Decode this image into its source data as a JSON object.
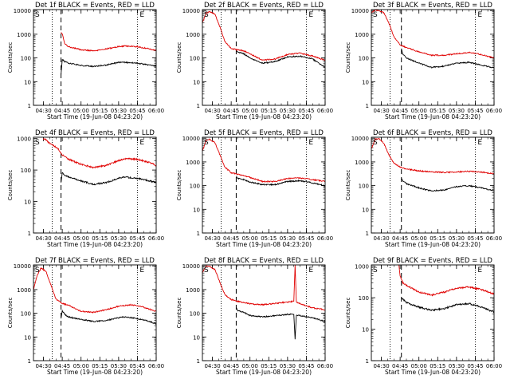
{
  "chart_data": [
    {
      "type": "line",
      "title": "Det 1f BLACK = Events, RED = LLD",
      "xlabel": "Start Time (19-Jun-08 04:23:20)",
      "ylabel": "Counts/sec",
      "y_scale": "log",
      "ylim": [
        1,
        11000
      ],
      "xlim": [
        "04:22",
        "06:00"
      ],
      "x_ticks": [
        "04:30",
        "04:45",
        "05:00",
        "05:15",
        "05:30",
        "05:45",
        "06:00"
      ],
      "y_ticks": [
        "1",
        "10",
        "100",
        "1000",
        "10000"
      ],
      "markers": {
        "dotted": [
          "04:37",
          "05:45"
        ],
        "dashed": [
          "04:44"
        ]
      },
      "corner_labels": {
        "left": "S",
        "right": "E"
      },
      "series": [
        {
          "name": "BLACK = Events",
          "color": "#000000",
          "x": [
            "04:44",
            "04:45",
            "04:47",
            "04:50",
            "05:00",
            "05:10",
            "05:20",
            "05:30",
            "05:35",
            "05:45",
            "05:55",
            "06:00"
          ],
          "y": [
            20,
            90,
            70,
            60,
            48,
            44,
            50,
            65,
            65,
            60,
            50,
            45
          ]
        },
        {
          "name": "RED = LLD",
          "color": "#e00000",
          "x": [
            "04:44",
            "04:45",
            "04:47",
            "04:50",
            "05:00",
            "05:10",
            "05:20",
            "05:30",
            "05:35",
            "05:45",
            "05:55",
            "06:00"
          ],
          "y": [
            1200,
            1000,
            400,
            300,
            220,
            200,
            240,
            300,
            320,
            300,
            240,
            200
          ]
        }
      ]
    },
    {
      "type": "line",
      "title": "Det 2f BLACK = Events, RED = LLD",
      "xlabel": "Start Time (19-Jun-08 04:23:20)",
      "ylabel": "Counts/sec",
      "y_scale": "log",
      "ylim": [
        1,
        11000
      ],
      "xlim": [
        "04:22",
        "06:00"
      ],
      "x_ticks": [
        "04:30",
        "04:45",
        "05:00",
        "05:15",
        "05:30",
        "05:45",
        "06:00"
      ],
      "y_ticks": [
        "1",
        "10",
        "100",
        "1000",
        "10000"
      ],
      "markers": {
        "dotted": [
          "04:37",
          "05:45"
        ],
        "dashed": [
          "04:49"
        ]
      },
      "corner_labels": {
        "left": "S",
        "right": "E"
      },
      "series": [
        {
          "name": "BLACK = Events",
          "color": "#000000",
          "x": [
            "04:49",
            "04:50",
            "04:55",
            "05:00",
            "05:10",
            "05:20",
            "05:30",
            "05:40",
            "05:50",
            "06:00"
          ],
          "y": [
            200,
            180,
            150,
            100,
            60,
            70,
            110,
            120,
            90,
            40
          ]
        },
        {
          "name": "RED = LLD",
          "color": "#e00000",
          "x": [
            "04:22",
            "04:25",
            "04:28",
            "04:32",
            "04:36",
            "04:40",
            "04:45",
            "04:50",
            "04:55",
            "05:00",
            "05:10",
            "05:20",
            "05:30",
            "05:40",
            "05:50",
            "06:00"
          ],
          "y": [
            3000,
            8000,
            9000,
            7000,
            2000,
            500,
            250,
            220,
            200,
            150,
            80,
            90,
            140,
            160,
            120,
            80
          ]
        }
      ]
    },
    {
      "type": "line",
      "title": "Det 3f BLACK = Events, RED = LLD",
      "xlabel": "Start Time (19-Jun-08 04:23:20)",
      "ylabel": "Counts/sec",
      "y_scale": "log",
      "ylim": [
        1,
        11000
      ],
      "xlim": [
        "04:22",
        "06:00"
      ],
      "x_ticks": [
        "04:30",
        "04:45",
        "05:00",
        "05:15",
        "05:30",
        "05:45",
        "06:00"
      ],
      "y_ticks": [
        "1",
        "10",
        "100",
        "1000",
        "10000"
      ],
      "markers": {
        "dotted": [
          "04:37",
          "05:45"
        ],
        "dashed": [
          "04:46"
        ]
      },
      "corner_labels": {
        "left": "S",
        "right": "E"
      },
      "series": [
        {
          "name": "BLACK = Events",
          "color": "#000000",
          "x": [
            "04:46",
            "04:47",
            "04:50",
            "05:00",
            "05:10",
            "05:20",
            "05:30",
            "05:40",
            "05:50",
            "06:00"
          ],
          "y": [
            250,
            150,
            100,
            60,
            40,
            45,
            60,
            65,
            50,
            38
          ]
        },
        {
          "name": "RED = LLD",
          "color": "#e00000",
          "x": [
            "04:22",
            "04:25",
            "04:28",
            "04:32",
            "04:36",
            "04:40",
            "04:45",
            "04:50",
            "05:00",
            "05:10",
            "05:20",
            "05:30",
            "05:40",
            "05:50",
            "06:00"
          ],
          "y": [
            8000,
            10500,
            10000,
            8000,
            3000,
            800,
            350,
            280,
            180,
            130,
            130,
            150,
            170,
            140,
            100
          ]
        }
      ]
    },
    {
      "type": "line",
      "title": "Det 4f BLACK = Events, RED = LLD",
      "xlabel": "Start Time (19-Jun-08 04:23:20)",
      "ylabel": "Counts/sec",
      "y_scale": "log",
      "ylim": [
        1,
        1100
      ],
      "xlim": [
        "04:22",
        "06:00"
      ],
      "x_ticks": [
        "04:30",
        "04:45",
        "05:00",
        "05:15",
        "05:30",
        "05:45",
        "06:00"
      ],
      "y_ticks": [
        "1",
        "10",
        "100",
        "1000"
      ],
      "markers": {
        "dotted": [
          "04:37",
          "05:45"
        ],
        "dashed": [
          "04:44"
        ]
      },
      "corner_labels": {
        "left": "S",
        "right": "E"
      },
      "series": [
        {
          "name": "BLACK = Events",
          "color": "#000000",
          "x": [
            "04:44",
            "04:45",
            "04:47",
            "04:50",
            "05:00",
            "05:10",
            "05:20",
            "05:30",
            "05:35",
            "05:45",
            "05:55",
            "06:00"
          ],
          "y": [
            40,
            80,
            70,
            60,
            45,
            35,
            40,
            55,
            60,
            55,
            45,
            40
          ]
        },
        {
          "name": "RED = LLD",
          "color": "#e00000",
          "x": [
            "04:30",
            "04:32",
            "04:35",
            "04:38",
            "04:42",
            "04:45",
            "04:50",
            "05:00",
            "05:10",
            "05:20",
            "05:30",
            "05:35",
            "05:45",
            "05:55",
            "06:00"
          ],
          "y": [
            1000,
            900,
            700,
            600,
            450,
            300,
            220,
            150,
            120,
            140,
            200,
            230,
            220,
            170,
            140
          ]
        }
      ]
    },
    {
      "type": "line",
      "title": "Det 5f BLACK = Events, RED = LLD",
      "xlabel": "Start Time (19-Jun-08 04:23:20)",
      "ylabel": "Counts/sec",
      "y_scale": "log",
      "ylim": [
        1,
        11000
      ],
      "xlim": [
        "04:22",
        "06:00"
      ],
      "x_ticks": [
        "04:30",
        "04:45",
        "05:00",
        "05:15",
        "05:30",
        "05:45",
        "06:00"
      ],
      "y_ticks": [
        "1",
        "10",
        "100",
        "1000",
        "10000"
      ],
      "markers": {
        "dotted": [
          "04:37",
          "05:45"
        ],
        "dashed": [
          "04:49"
        ]
      },
      "corner_labels": {
        "left": "S",
        "right": "E"
      },
      "series": [
        {
          "name": "BLACK = Events",
          "color": "#000000",
          "x": [
            "04:49",
            "04:50",
            "04:55",
            "05:00",
            "05:10",
            "05:20",
            "05:30",
            "05:40",
            "05:50",
            "06:00"
          ],
          "y": [
            250,
            200,
            180,
            140,
            110,
            110,
            150,
            160,
            130,
            100
          ]
        },
        {
          "name": "RED = LLD",
          "color": "#e00000",
          "x": [
            "04:22",
            "04:25",
            "04:28",
            "04:32",
            "04:36",
            "04:40",
            "04:45",
            "04:50",
            "04:55",
            "05:00",
            "05:10",
            "05:20",
            "05:30",
            "05:40",
            "05:50",
            "06:00"
          ],
          "y": [
            3000,
            8000,
            9000,
            6500,
            2000,
            600,
            350,
            300,
            260,
            220,
            150,
            150,
            200,
            210,
            180,
            150
          ]
        }
      ]
    },
    {
      "type": "line",
      "title": "Det 6f BLACK = Events, RED = LLD",
      "xlabel": "Start Time (19-Jun-08 04:23:20)",
      "ylabel": "Counts/sec",
      "y_scale": "log",
      "ylim": [
        1,
        11000
      ],
      "xlim": [
        "04:22",
        "06:00"
      ],
      "x_ticks": [
        "04:30",
        "04:45",
        "05:00",
        "05:15",
        "05:30",
        "05:45",
        "06:00"
      ],
      "y_ticks": [
        "1",
        "10",
        "100",
        "1000",
        "10000"
      ],
      "markers": {
        "dotted": [
          "04:37",
          "05:45"
        ],
        "dashed": [
          "04:46"
        ]
      },
      "corner_labels": {
        "left": "S",
        "right": "E"
      },
      "series": [
        {
          "name": "BLACK = Events",
          "color": "#000000",
          "x": [
            "04:46",
            "04:47",
            "04:50",
            "05:00",
            "05:10",
            "05:20",
            "05:30",
            "05:40",
            "05:50",
            "06:00"
          ],
          "y": [
            200,
            160,
            120,
            80,
            60,
            65,
            90,
            100,
            80,
            60
          ]
        },
        {
          "name": "RED = LLD",
          "color": "#e00000",
          "x": [
            "04:22",
            "04:25",
            "04:28",
            "04:32",
            "04:36",
            "04:40",
            "04:45",
            "04:50",
            "05:00",
            "05:10",
            "05:20",
            "05:30",
            "05:40",
            "05:50",
            "06:00"
          ],
          "y": [
            3500,
            9000,
            9500,
            6000,
            2000,
            900,
            600,
            500,
            420,
            380,
            360,
            380,
            400,
            370,
            320
          ]
        }
      ]
    },
    {
      "type": "line",
      "title": "Det 7f BLACK = Events, RED = LLD",
      "xlabel": "Start Time (19-Jun-08 04:23:20)",
      "ylabel": "Counts/sec",
      "y_scale": "log",
      "ylim": [
        1,
        11000
      ],
      "xlim": [
        "04:22",
        "06:00"
      ],
      "x_ticks": [
        "04:30",
        "04:45",
        "05:00",
        "05:15",
        "05:30",
        "05:45",
        "06:00"
      ],
      "y_ticks": [
        "1",
        "10",
        "100",
        "1000",
        "10000"
      ],
      "markers": {
        "dotted": [
          "04:37",
          "05:45"
        ],
        "dashed": [
          "04:44"
        ]
      },
      "corner_labels": {
        "left": "S",
        "right": "E"
      },
      "series": [
        {
          "name": "BLACK = Events",
          "color": "#000000",
          "x": [
            "04:44",
            "04:45",
            "04:47",
            "04:50",
            "05:00",
            "05:10",
            "05:20",
            "05:30",
            "05:35",
            "05:45",
            "05:55",
            "06:00"
          ],
          "y": [
            60,
            130,
            90,
            70,
            55,
            45,
            50,
            65,
            70,
            60,
            45,
            35
          ]
        },
        {
          "name": "RED = LLD",
          "color": "#e00000",
          "x": [
            "04:22",
            "04:25",
            "04:28",
            "04:32",
            "04:36",
            "04:40",
            "04:45",
            "04:50",
            "05:00",
            "05:10",
            "05:20",
            "05:30",
            "05:40",
            "05:50",
            "06:00"
          ],
          "y": [
            1000,
            4000,
            8000,
            6000,
            1500,
            400,
            260,
            220,
            120,
            110,
            140,
            200,
            230,
            180,
            120
          ]
        }
      ]
    },
    {
      "type": "line",
      "title": "Det 8f BLACK = Events, RED = LLD",
      "xlabel": "Start Time (19-Jun-08 04:23:20)",
      "ylabel": "Counts/sec",
      "y_scale": "log",
      "ylim": [
        1,
        11000
      ],
      "xlim": [
        "04:22",
        "06:00"
      ],
      "x_ticks": [
        "04:30",
        "04:45",
        "05:00",
        "05:15",
        "05:30",
        "05:45",
        "06:00"
      ],
      "y_ticks": [
        "1",
        "10",
        "100",
        "1000",
        "10000"
      ],
      "markers": {
        "dotted": [
          "04:37",
          "05:45"
        ],
        "dashed": [
          "04:49"
        ]
      },
      "corner_labels": {
        "left": "S",
        "right": "E"
      },
      "series": [
        {
          "name": "BLACK = Events",
          "color": "#000000",
          "x": [
            "04:49",
            "04:50",
            "04:55",
            "05:00",
            "05:10",
            "05:20",
            "05:30",
            "05:35",
            "05:36",
            "05:37",
            "05:40",
            "05:50",
            "06:00"
          ],
          "y": [
            180,
            130,
            110,
            80,
            70,
            80,
            90,
            90,
            8,
            80,
            80,
            65,
            45
          ]
        },
        {
          "name": "RED = LLD",
          "color": "#e00000",
          "x": [
            "04:22",
            "04:25",
            "04:28",
            "04:32",
            "04:36",
            "04:40",
            "04:45",
            "04:50",
            "05:00",
            "05:10",
            "05:20",
            "05:30",
            "05:35",
            "05:36",
            "05:37",
            "05:40",
            "05:50",
            "06:00"
          ],
          "y": [
            5000,
            10000,
            9500,
            7000,
            2000,
            600,
            380,
            320,
            250,
            230,
            260,
            300,
            320,
            11000,
            300,
            250,
            170,
            140
          ]
        }
      ]
    },
    {
      "type": "line",
      "title": "Det 9f BLACK = Events, RED = LLD",
      "xlabel": "Start Time (19-Jun-08 04:23:20)",
      "ylabel": "Counts/sec",
      "y_scale": "log",
      "ylim": [
        1,
        1100
      ],
      "xlim": [
        "04:22",
        "06:00"
      ],
      "x_ticks": [
        "04:30",
        "04:45",
        "05:00",
        "05:15",
        "05:30",
        "05:45",
        "06:00"
      ],
      "y_ticks": [
        "1",
        "10",
        "100",
        "1000"
      ],
      "markers": {
        "dotted": [
          "04:37",
          "05:45"
        ],
        "dashed": [
          "04:46"
        ]
      },
      "corner_labels": {
        "left": "S",
        "right": "E"
      },
      "series": [
        {
          "name": "BLACK = Events",
          "color": "#000000",
          "x": [
            "04:46",
            "04:47",
            "04:50",
            "05:00",
            "05:10",
            "05:20",
            "05:30",
            "05:40",
            "05:50",
            "06:00"
          ],
          "y": [
            100,
            90,
            70,
            50,
            40,
            45,
            60,
            65,
            50,
            35
          ]
        },
        {
          "name": "RED = LLD",
          "color": "#e00000",
          "x": [
            "04:44",
            "04:45",
            "04:47",
            "04:50",
            "05:00",
            "05:10",
            "05:20",
            "05:30",
            "05:40",
            "05:50",
            "06:00"
          ],
          "y": [
            1100,
            500,
            300,
            250,
            150,
            120,
            150,
            200,
            220,
            180,
            130
          ]
        }
      ]
    }
  ]
}
